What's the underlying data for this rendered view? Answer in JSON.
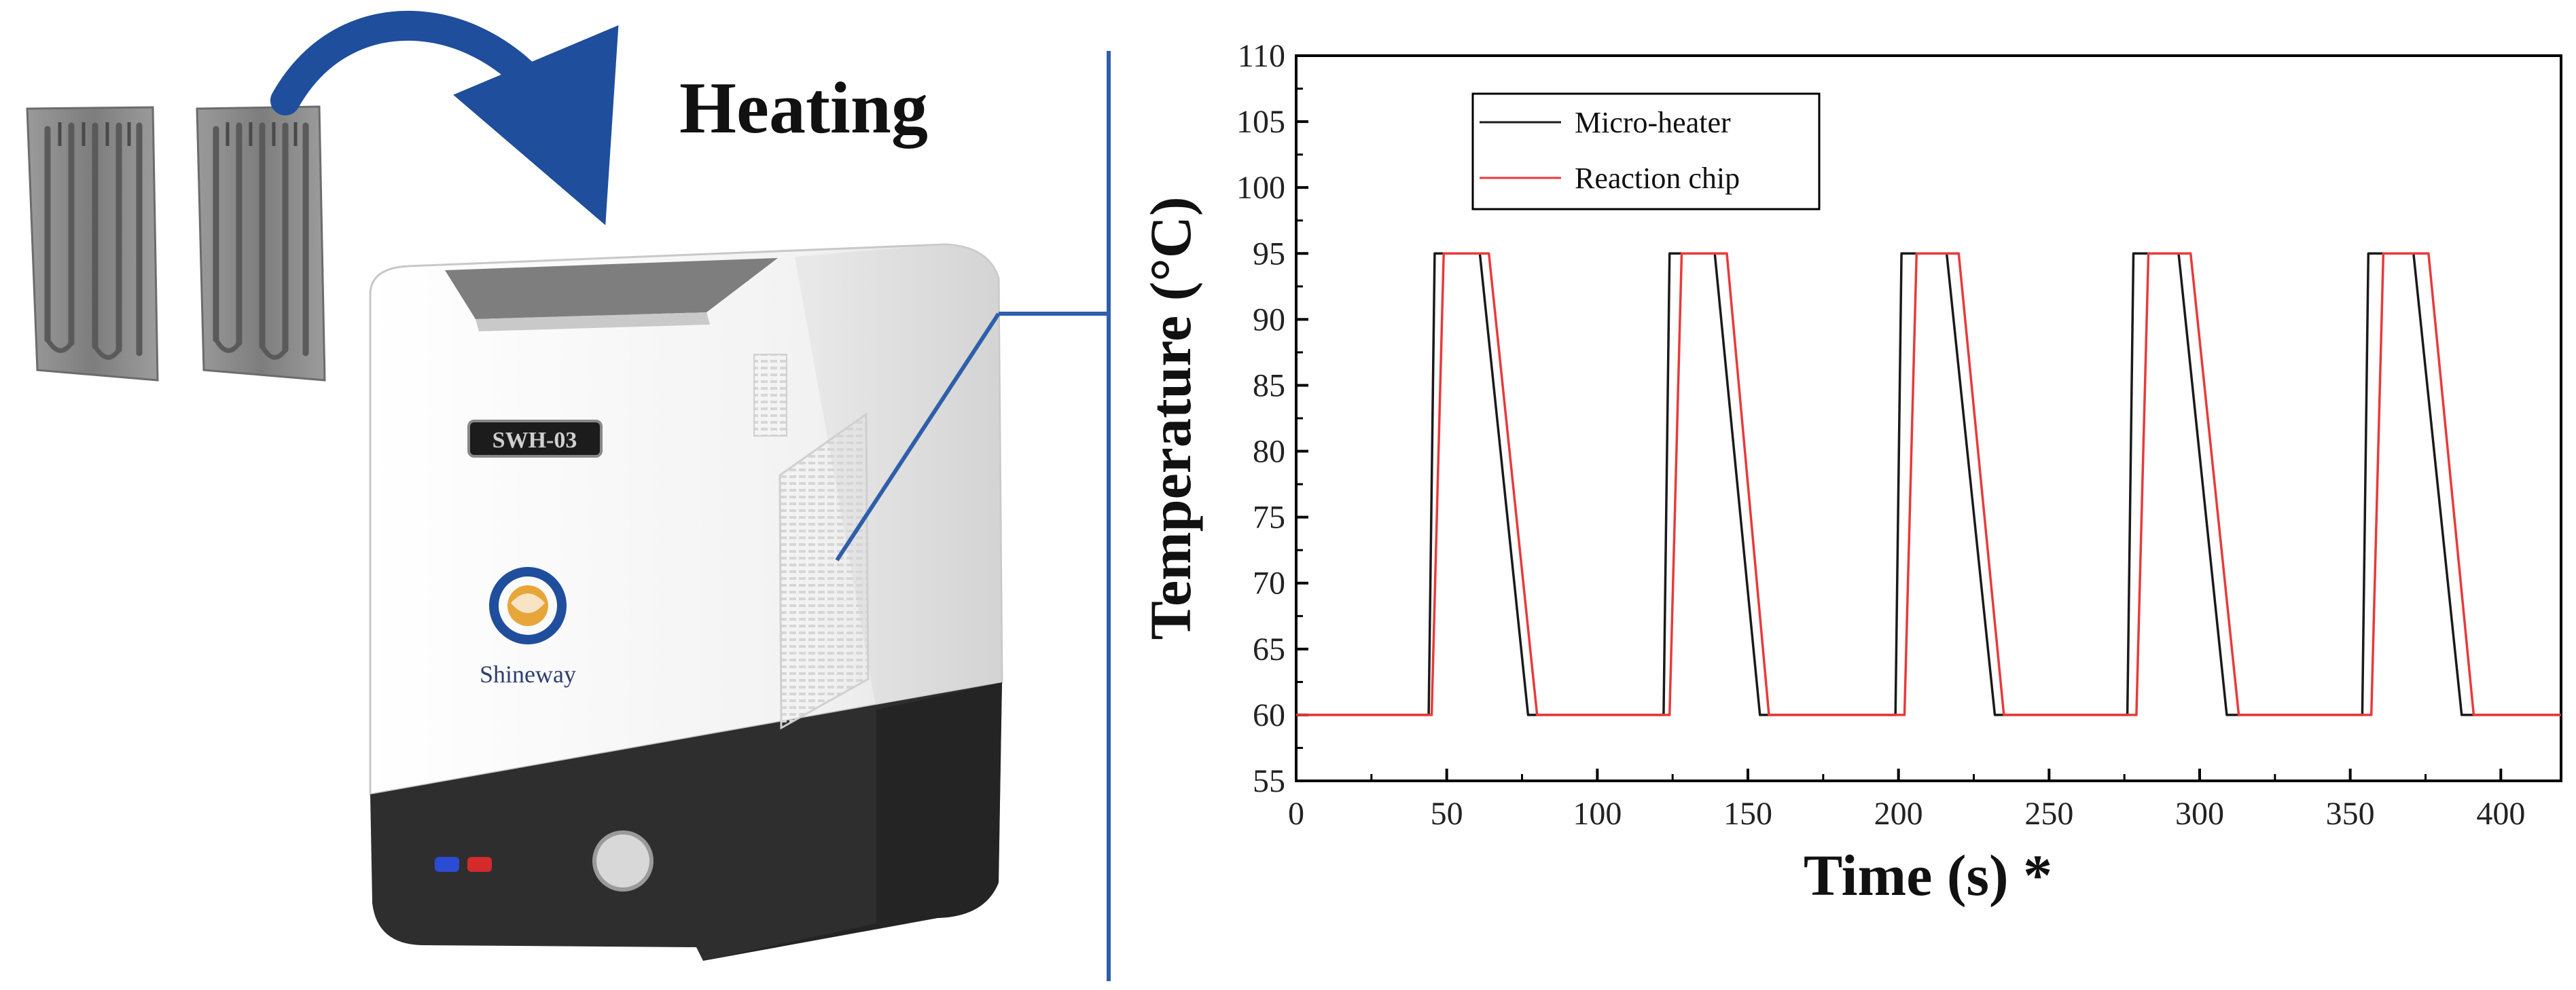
{
  "left_panel": {
    "heating_label": "Heating",
    "device": {
      "display_label": "SWH-03",
      "brand_name": "Shineway"
    }
  },
  "colors": {
    "chip_gray": "#8a8a8a",
    "arrow_blue": "#1f4e9c",
    "device_white": "#f5f5f5",
    "device_dark": "#2e2e2e",
    "divider_blue": "#2f5faa",
    "series_micro_heater": "#1a1a1a",
    "series_reaction_chip": "#e83a3a"
  },
  "chart_data": {
    "type": "line",
    "title": "",
    "xlabel": "Time (s) *",
    "ylabel": "Temperature (°C)",
    "xlim": [
      0,
      420
    ],
    "ylim": [
      55,
      110
    ],
    "xticks": [
      0,
      50,
      100,
      150,
      200,
      250,
      300,
      350,
      400
    ],
    "yticks": [
      55,
      60,
      65,
      70,
      75,
      80,
      85,
      90,
      95,
      100,
      105,
      110
    ],
    "legend_position": "top-left",
    "series": [
      {
        "name": "Micro-heater",
        "color": "#1a1a1a",
        "points": [
          [
            0,
            60
          ],
          [
            44,
            60
          ],
          [
            46,
            95
          ],
          [
            61,
            95
          ],
          [
            77,
            60
          ],
          [
            122,
            60
          ],
          [
            124,
            95
          ],
          [
            139,
            95
          ],
          [
            154,
            60
          ],
          [
            199,
            60
          ],
          [
            201,
            95
          ],
          [
            216,
            95
          ],
          [
            232,
            60
          ],
          [
            276,
            60
          ],
          [
            278,
            95
          ],
          [
            293,
            95
          ],
          [
            309,
            60
          ],
          [
            354,
            60
          ],
          [
            356,
            95
          ],
          [
            371,
            95
          ],
          [
            387,
            60
          ],
          [
            420,
            60
          ]
        ]
      },
      {
        "name": "Reaction chip",
        "color": "#e83a3a",
        "points": [
          [
            0,
            60
          ],
          [
            45,
            60
          ],
          [
            49,
            95
          ],
          [
            64,
            95
          ],
          [
            80,
            60
          ],
          [
            124,
            60
          ],
          [
            128,
            95
          ],
          [
            143,
            95
          ],
          [
            157,
            60
          ],
          [
            202,
            60
          ],
          [
            206,
            95
          ],
          [
            220,
            95
          ],
          [
            235,
            60
          ],
          [
            279,
            60
          ],
          [
            283,
            95
          ],
          [
            297,
            95
          ],
          [
            313,
            60
          ],
          [
            357,
            60
          ],
          [
            361,
            95
          ],
          [
            376,
            95
          ],
          [
            391,
            60
          ],
          [
            420,
            60
          ]
        ]
      }
    ]
  }
}
